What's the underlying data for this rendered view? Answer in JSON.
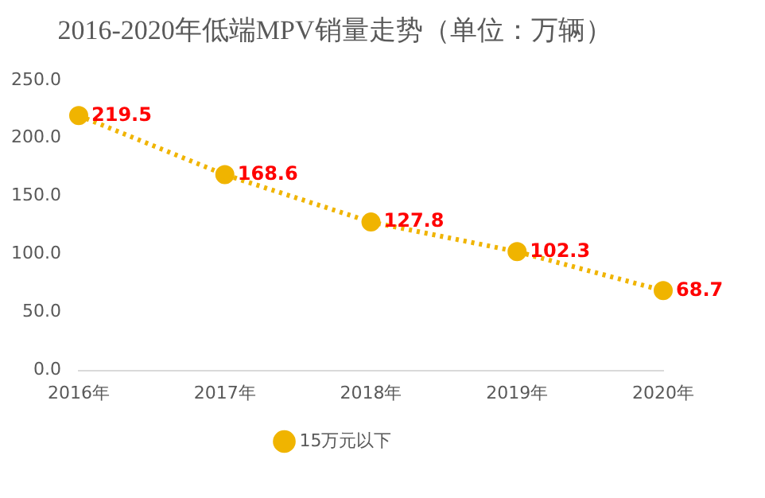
{
  "chart_data": {
    "type": "line",
    "title": "2016-2020年低端MPV销量走势（单位：万辆）",
    "categories": [
      "2016年",
      "2017年",
      "2018年",
      "2019年",
      "2020年"
    ],
    "series": [
      {
        "name": "15万元以下",
        "color": "#f0b400",
        "values": [
          219.5,
          168.6,
          127.8,
          102.3,
          68.7
        ]
      }
    ],
    "ylim": [
      0,
      250
    ],
    "yticks": [
      {
        "value": 0,
        "label": "0.0"
      },
      {
        "value": 50,
        "label": "50.0"
      },
      {
        "value": 100,
        "label": "100.0"
      },
      {
        "value": 150,
        "label": "150.0"
      },
      {
        "value": 200,
        "label": "200.0"
      },
      {
        "value": 250,
        "label": "250.0"
      }
    ],
    "grid": false,
    "legend": "bottom",
    "marker": "circle",
    "line_style": "dotted",
    "data_labels": true
  }
}
